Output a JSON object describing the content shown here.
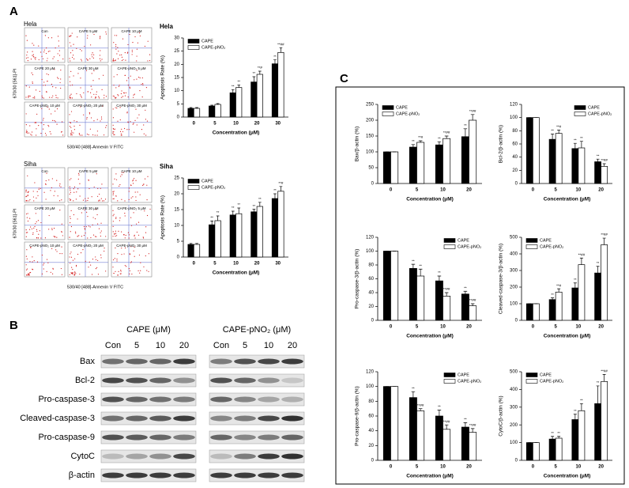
{
  "panel_labels": [
    "A",
    "B",
    "C"
  ],
  "flow": [
    {
      "title": "Hela",
      "y_label": "670/30 [561]-PI",
      "x_label": "530/40 [488]-Annexin V FITC",
      "conditions": [
        "Con",
        "CAPE 5 μM",
        "CAPE 10 μM",
        "CAPE 20 μM",
        "CAPE 30 μM",
        "CAPE-pNO₂ 5 μM",
        "CAPE-pNO₂ 10 μM",
        "CAPE-pNO₂ 20 μM",
        "CAPE-pNO₂ 30 μM"
      ]
    },
    {
      "title": "Siha",
      "y_label": "670/30 [561]-PI",
      "x_label": "530/40 [488]-Annexin V FITC",
      "conditions": [
        "Con",
        "CAPE 5 μM",
        "CAPE 10 μM",
        "CAPE 20 μM",
        "CAPE 30 μM",
        "CAPE-pNO₂ 5 μM",
        "CAPE-pNO₂ 10 μM",
        "CAPE-pNO₂ 20 μM",
        "CAPE-pNO₂ 30 μM"
      ]
    }
  ],
  "blot": {
    "groups": [
      "CAPE (μM)",
      "CAPE-pNO₂ (μM)"
    ],
    "lanes": [
      "Con",
      "5",
      "10",
      "20"
    ],
    "proteins": [
      "Bax",
      "Bcl-2",
      "Pro-caspase-3",
      "Cleaved-caspase-3",
      "Pro-caspase-9",
      "CytoC",
      "β-actin"
    ]
  },
  "chart_data": [
    {
      "type": "bar",
      "title": "Hela",
      "y_label": "Apoptosis Rate (%)",
      "x_label": "Concentration (μM)",
      "categories": [
        "0",
        "5",
        "10",
        "20",
        "30"
      ],
      "ylim": [
        0,
        30
      ],
      "yticks": [
        0,
        5,
        10,
        15,
        20,
        25,
        30
      ],
      "grid": false,
      "legend": "upper left",
      "series": [
        {
          "name": "CAPE",
          "color": "#000000",
          "values": [
            3.3,
            4.2,
            9.2,
            13.3,
            20.2
          ],
          "errors": [
            0.3,
            0.3,
            1.2,
            2.0,
            1.5
          ],
          "significance": [
            null,
            null,
            "**",
            "**",
            "**"
          ]
        },
        {
          "name": "CAPE-pNO₂",
          "color": "#ffffff",
          "values": [
            3.3,
            4.8,
            11.2,
            16.2,
            24.5
          ],
          "errors": [
            0.3,
            0.3,
            1.0,
            1.2,
            1.8
          ],
          "significance": [
            null,
            null,
            "**",
            "**#",
            "**##"
          ]
        }
      ]
    },
    {
      "type": "bar",
      "title": "Siha",
      "y_label": "Apoptosis Rate (%)",
      "x_label": "Concentration (μM)",
      "categories": [
        "0",
        "5",
        "10",
        "20",
        "30"
      ],
      "ylim": [
        0,
        25
      ],
      "yticks": [
        0,
        5,
        10,
        15,
        20,
        25
      ],
      "grid": false,
      "legend": "upper left",
      "series": [
        {
          "name": "CAPE",
          "color": "#000000",
          "values": [
            4.0,
            10.2,
            13.3,
            14.3,
            18.5
          ],
          "errors": [
            0.3,
            1.2,
            1.2,
            0.8,
            1.5
          ],
          "significance": [
            null,
            "**",
            "**",
            "**",
            "**"
          ]
        },
        {
          "name": "CAPE-pNO₂",
          "color": "#ffffff",
          "values": [
            4.0,
            11.5,
            13.7,
            16.0,
            20.8
          ],
          "errors": [
            0.3,
            1.5,
            1.8,
            1.3,
            1.5
          ],
          "significance": [
            null,
            "**",
            "**",
            "**",
            "**#"
          ]
        }
      ]
    },
    {
      "type": "bar",
      "y_label": "Bax/β-actin (%)",
      "x_label": "Concentration (μM)",
      "categories": [
        "0",
        "5",
        "10",
        "20"
      ],
      "ylim": [
        0,
        250
      ],
      "yticks": [
        0,
        50,
        100,
        150,
        200,
        250
      ],
      "grid": false,
      "legend": "upper left",
      "series": [
        {
          "name": "CAPE",
          "color": "#000000",
          "values": [
            100,
            115,
            122,
            148
          ],
          "errors": [
            0,
            8,
            10,
            25
          ],
          "significance": [
            null,
            "**",
            "**",
            "**"
          ]
        },
        {
          "name": "CAPE-pNO₂",
          "color": "#ffffff",
          "values": [
            100,
            130,
            142,
            200
          ],
          "errors": [
            0,
            5,
            8,
            18
          ],
          "significance": [
            null,
            "**#",
            "**##",
            "**##"
          ]
        }
      ]
    },
    {
      "type": "bar",
      "y_label": "Bcl-2/β-actin (%)",
      "x_label": "Concentration (μM)",
      "categories": [
        "0",
        "5",
        "10",
        "20"
      ],
      "ylim": [
        0,
        120
      ],
      "yticks": [
        0,
        20,
        40,
        60,
        80,
        100,
        120
      ],
      "grid": false,
      "legend": "upper right",
      "series": [
        {
          "name": "CAPE",
          "color": "#000000",
          "values": [
            100,
            67,
            53,
            33
          ],
          "errors": [
            0,
            8,
            8,
            4
          ],
          "significance": [
            null,
            "**",
            "**",
            "**"
          ]
        },
        {
          "name": "CAPE-pNO₂",
          "color": "#ffffff",
          "values": [
            100,
            76,
            54,
            26
          ],
          "errors": [
            0,
            5,
            10,
            4
          ],
          "significance": [
            null,
            "**#",
            "**",
            "**##"
          ]
        }
      ]
    },
    {
      "type": "bar",
      "y_label": "Pro-caspase-3/β-actin (%)",
      "x_label": "Concentration (μM)",
      "categories": [
        "0",
        "5",
        "10",
        "20"
      ],
      "ylim": [
        0,
        120
      ],
      "yticks": [
        0,
        20,
        40,
        60,
        80,
        100,
        120
      ],
      "grid": false,
      "legend": "upper right",
      "series": [
        {
          "name": "CAPE",
          "color": "#000000",
          "values": [
            100,
            75,
            57,
            38
          ],
          "errors": [
            0,
            6,
            7,
            4
          ],
          "significance": [
            null,
            "**",
            "**",
            "**"
          ]
        },
        {
          "name": "CAPE-pNO₂",
          "color": "#ffffff",
          "values": [
            100,
            64,
            35,
            21
          ],
          "errors": [
            0,
            10,
            5,
            3
          ],
          "significance": [
            null,
            "**",
            "**##",
            "**##"
          ]
        }
      ]
    },
    {
      "type": "bar",
      "y_label": "Cleaved-caspase-3/β-actin (%)",
      "x_label": "Concentration (μM)",
      "categories": [
        "0",
        "5",
        "10",
        "20"
      ],
      "ylim": [
        0,
        500
      ],
      "yticks": [
        0,
        100,
        200,
        300,
        400,
        500
      ],
      "grid": false,
      "legend": "upper left",
      "series": [
        {
          "name": "CAPE",
          "color": "#000000",
          "values": [
            100,
            125,
            195,
            285
          ],
          "errors": [
            0,
            10,
            30,
            40
          ],
          "significance": [
            null,
            "**",
            "**",
            "**"
          ]
        },
        {
          "name": "CAPE-pNO₂",
          "color": "#ffffff",
          "values": [
            100,
            170,
            335,
            455
          ],
          "errors": [
            0,
            20,
            40,
            40
          ],
          "significance": [
            null,
            "**#",
            "**##",
            "**##"
          ]
        }
      ]
    },
    {
      "type": "bar",
      "y_label": "Pro-caspase-9/β-actin (%)",
      "x_label": "Concentration (μM)",
      "categories": [
        "0",
        "5",
        "10",
        "20"
      ],
      "ylim": [
        0,
        120
      ],
      "yticks": [
        0,
        20,
        40,
        60,
        80,
        100,
        120
      ],
      "grid": false,
      "legend": "upper right",
      "series": [
        {
          "name": "CAPE",
          "color": "#000000",
          "values": [
            100,
            85,
            60,
            45
          ],
          "errors": [
            0,
            8,
            8,
            6
          ],
          "significance": [
            null,
            "**",
            "**",
            "**"
          ]
        },
        {
          "name": "CAPE-pNO₂",
          "color": "#ffffff",
          "values": [
            100,
            67,
            42,
            38
          ],
          "errors": [
            0,
            3,
            6,
            5
          ],
          "significance": [
            null,
            "**##",
            "**##",
            "**##"
          ]
        }
      ]
    },
    {
      "type": "bar",
      "y_label": "CytoC/β-actin (%)",
      "x_label": "Concentration (μM)",
      "categories": [
        "0",
        "5",
        "10",
        "20"
      ],
      "ylim": [
        0,
        500
      ],
      "yticks": [
        0,
        100,
        200,
        300,
        400,
        500
      ],
      "grid": false,
      "legend": "upper left",
      "series": [
        {
          "name": "CAPE",
          "color": "#000000",
          "values": [
            100,
            120,
            230,
            320
          ],
          "errors": [
            0,
            15,
            30,
            100
          ],
          "significance": [
            null,
            "**",
            "**",
            "**"
          ]
        },
        {
          "name": "CAPE-pNO₂",
          "color": "#ffffff",
          "values": [
            100,
            125,
            280,
            445
          ],
          "errors": [
            0,
            10,
            40,
            40
          ],
          "significance": [
            null,
            "**",
            "**",
            "**##"
          ]
        }
      ]
    }
  ]
}
